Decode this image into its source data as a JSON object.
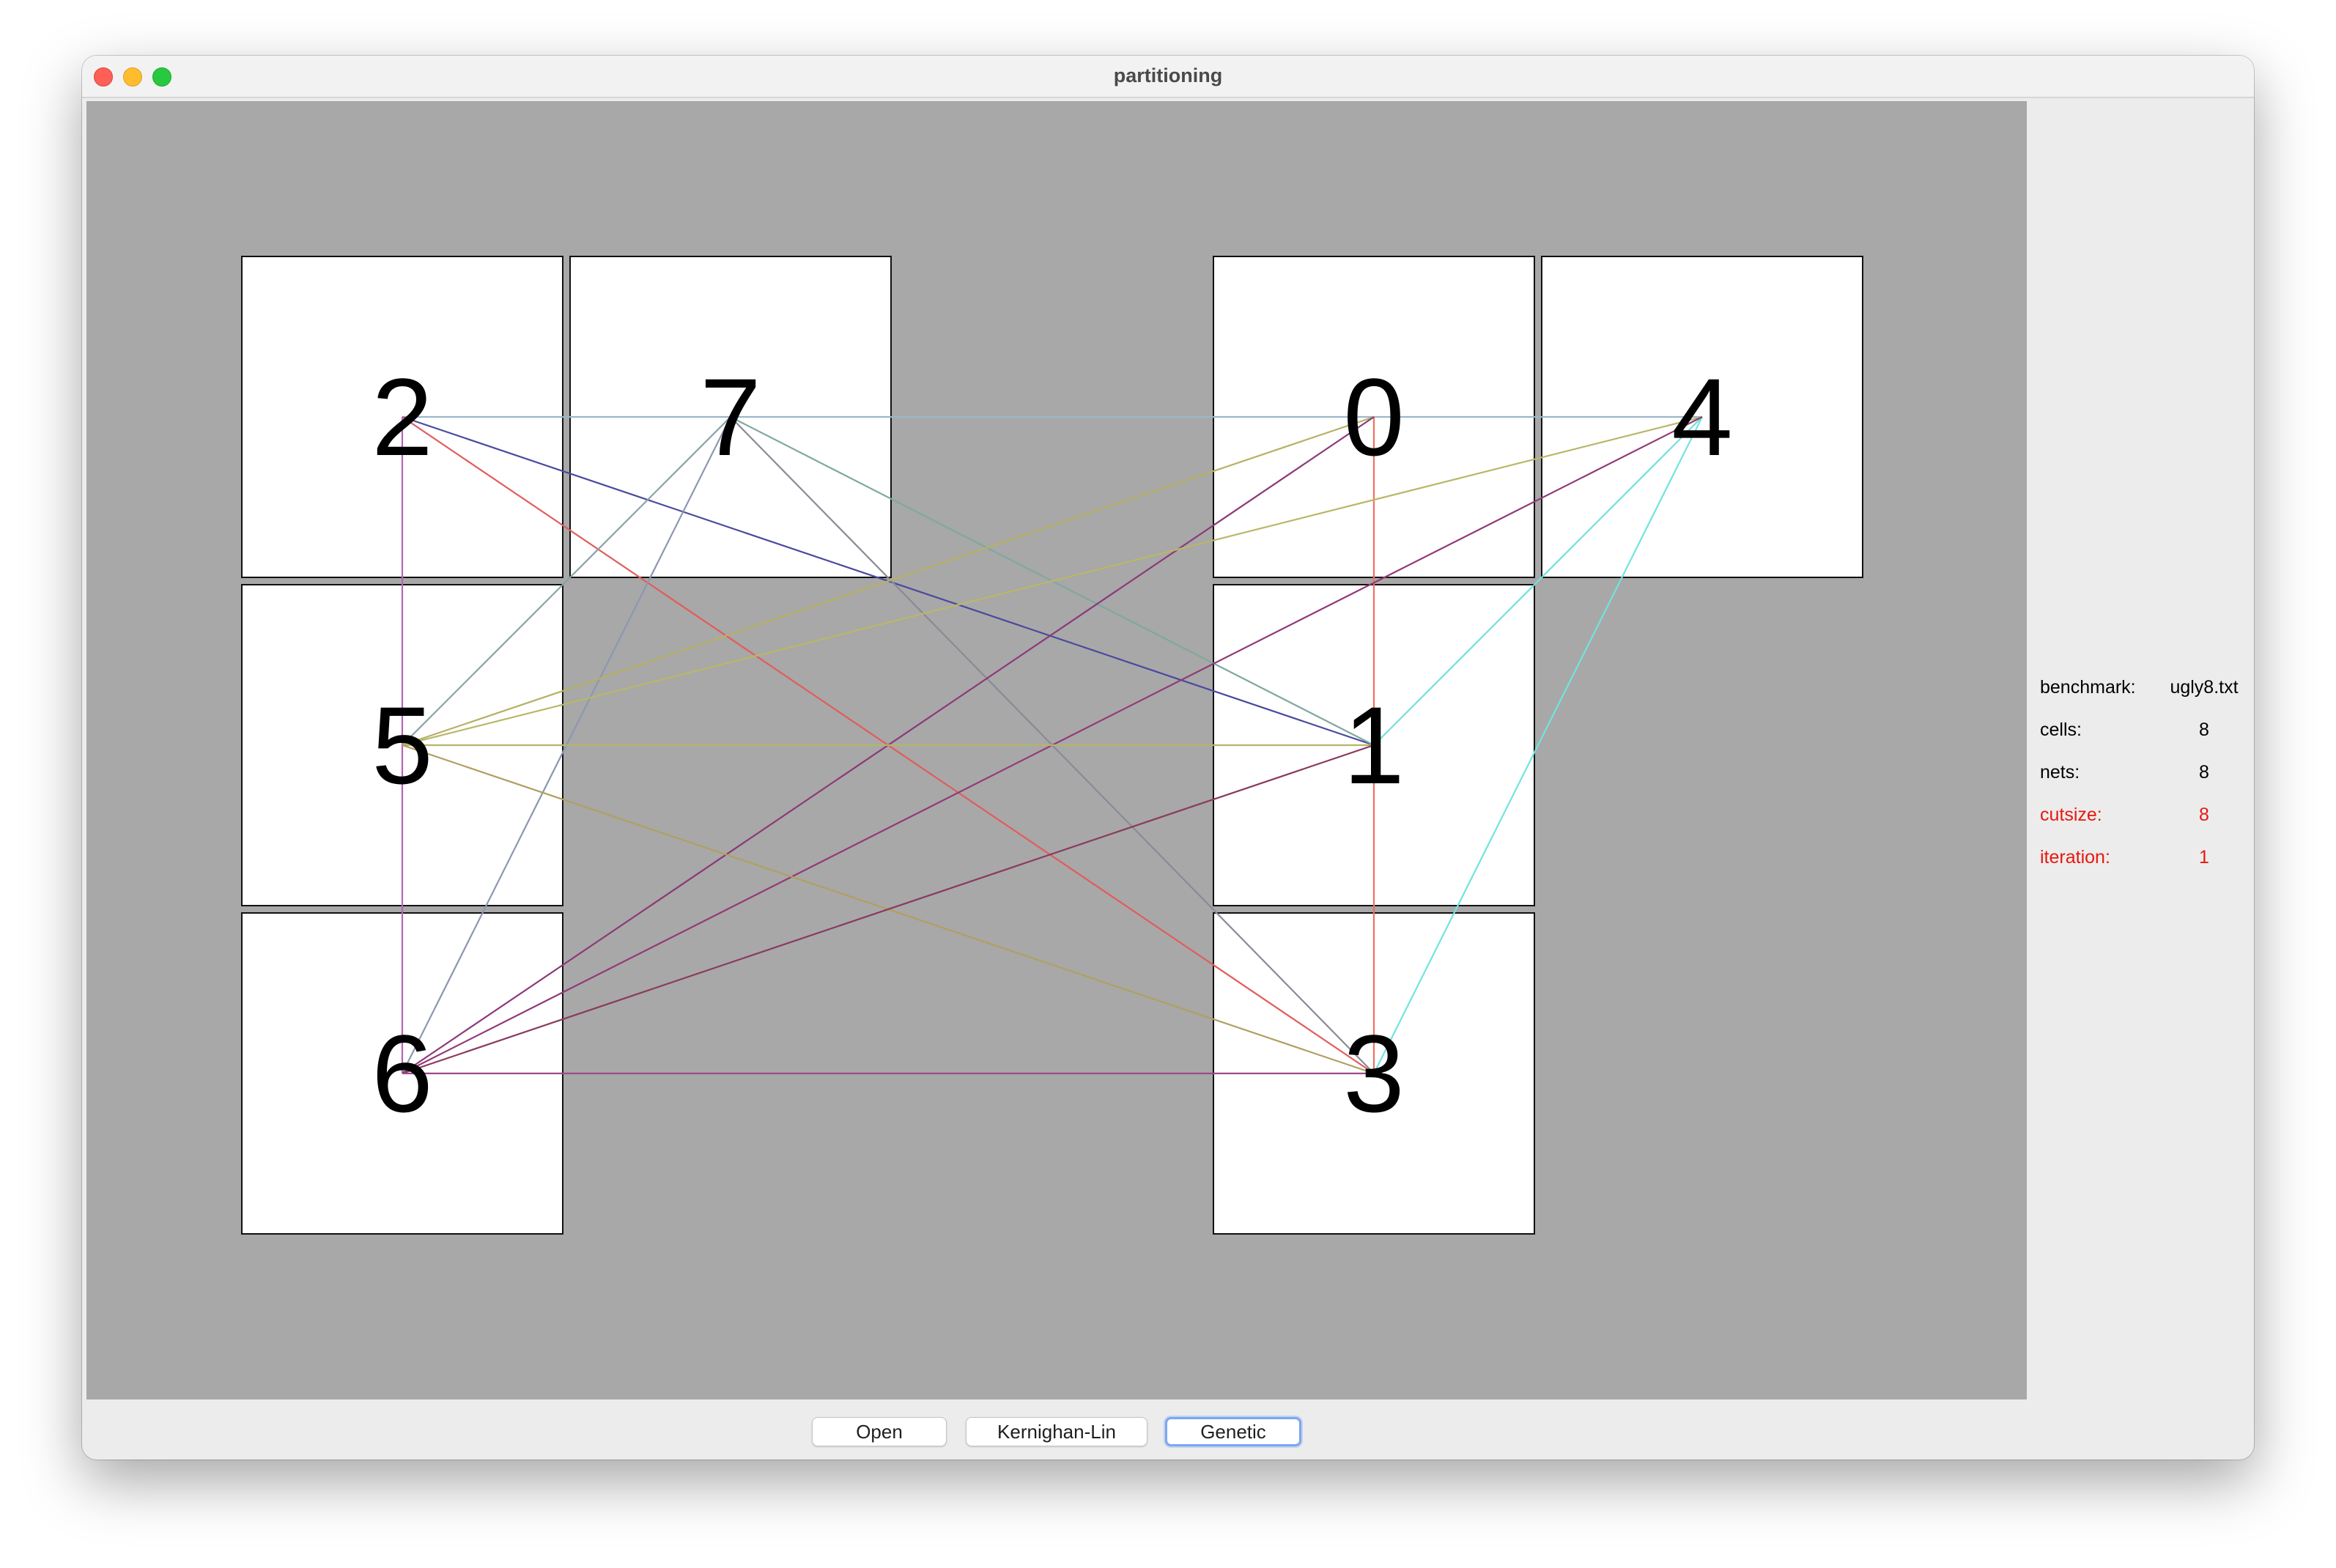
{
  "window": {
    "title": "partitioning"
  },
  "cells": [
    {
      "id": "2",
      "label": "2",
      "col": 0,
      "row": 0
    },
    {
      "id": "7",
      "label": "7",
      "col": 1,
      "row": 0
    },
    {
      "id": "0",
      "label": "0",
      "col": 3,
      "row": 0
    },
    {
      "id": "4",
      "label": "4",
      "col": 4,
      "row": 0
    },
    {
      "id": "5",
      "label": "5",
      "col": 0,
      "row": 1
    },
    {
      "id": "1",
      "label": "1",
      "col": 3,
      "row": 1
    },
    {
      "id": "6",
      "label": "6",
      "col": 0,
      "row": 2
    },
    {
      "id": "3",
      "label": "3",
      "col": 3,
      "row": 2
    }
  ],
  "connections": [
    {
      "from": "2",
      "to": "4",
      "color": "#9db6c8"
    },
    {
      "from": "2",
      "to": "1",
      "color": "#4a4aa0"
    },
    {
      "from": "2",
      "to": "3",
      "color": "#e25c5c"
    },
    {
      "from": "2",
      "to": "6",
      "color": "#b565b5"
    },
    {
      "from": "7",
      "to": "5",
      "color": "#8aa0a8"
    },
    {
      "from": "7",
      "to": "6",
      "color": "#8a98b0"
    },
    {
      "from": "7",
      "to": "1",
      "color": "#7fa8a0"
    },
    {
      "from": "7",
      "to": "3",
      "color": "#8a8a98"
    },
    {
      "from": "0",
      "to": "5",
      "color": "#b7b065"
    },
    {
      "from": "0",
      "to": "3",
      "color": "#ef7060"
    },
    {
      "from": "0",
      "to": "6",
      "color": "#8a3a7a"
    },
    {
      "from": "4",
      "to": "5",
      "color": "#b9b76a"
    },
    {
      "from": "4",
      "to": "1",
      "color": "#6fe0dc"
    },
    {
      "from": "4",
      "to": "3",
      "color": "#70e4e0"
    },
    {
      "from": "4",
      "to": "6",
      "color": "#923a78"
    },
    {
      "from": "5",
      "to": "1",
      "color": "#b5b56a"
    },
    {
      "from": "5",
      "to": "3",
      "color": "#b0a060"
    },
    {
      "from": "1",
      "to": "6",
      "color": "#8a3a5e"
    },
    {
      "from": "6",
      "to": "3",
      "color": "#9e4a86"
    }
  ],
  "stats": [
    {
      "label": "benchmark:",
      "value": "ugly8.txt",
      "highlight": false
    },
    {
      "label": "cells:",
      "value": "8",
      "highlight": false
    },
    {
      "label": "nets:",
      "value": "8",
      "highlight": false
    },
    {
      "label": "cutsize:",
      "value": "8",
      "highlight": true
    },
    {
      "label": "iteration:",
      "value": "1",
      "highlight": true
    }
  ],
  "buttons": {
    "open": "Open",
    "kl": "Kernighan-Lin",
    "genetic": "Genetic"
  }
}
